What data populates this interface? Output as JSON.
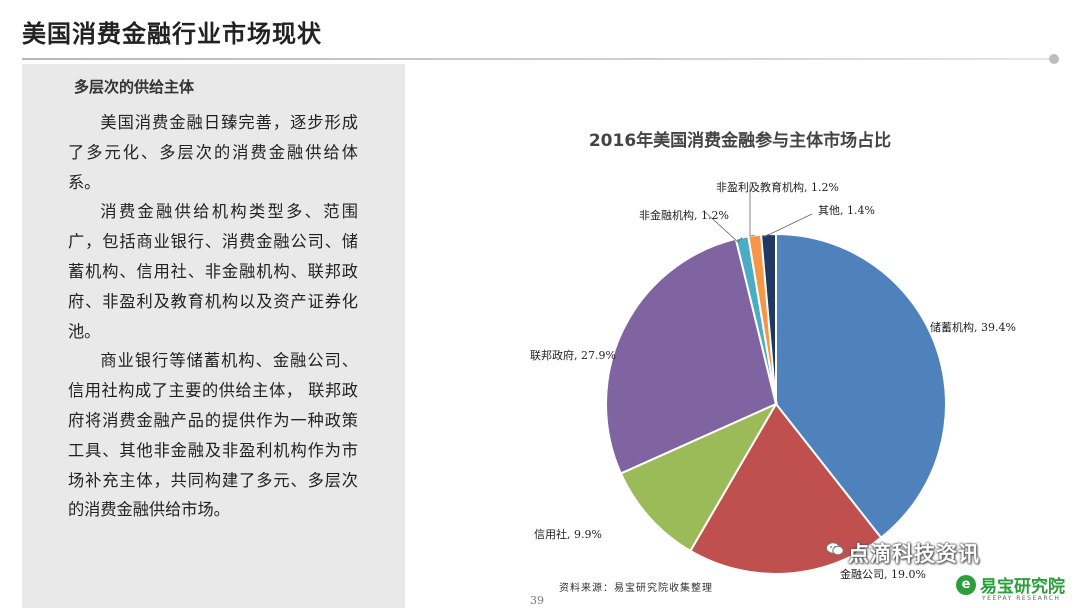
{
  "slide": {
    "title": "美国消费金融行业市场现状",
    "page_number": "39"
  },
  "left_panel": {
    "heading": "多层次的供给主体",
    "paragraphs": [
      "美国消费金融日臻完善，逐步形成了多元化、多层次的消费金融供给体系。",
      "消费金融供给机构类型多、范围广，包括商业银行、消费金融公司、储蓄机构、信用社、非金融机构、联邦政府、非盈利及教育机构以及资产证券化池。",
      "商业银行等储蓄机构、金融公司、信用社构成了主要的供给主体， 联邦政府将消费金融产品的提供作为一种政策工具、其他非金融及非盈利机构作为市场补充主体，共同构建了多元、多层次的消费金融供给市场。"
    ]
  },
  "source_note": "资料来源：易宝研究院收集整理",
  "watermark": {
    "text": "点滴科技资讯",
    "icon": "wechat-icon"
  },
  "logo": {
    "name": "易宝研究院",
    "subtitle": "YEEPAY RESEARCH",
    "mark": "e"
  },
  "chart_data": {
    "type": "pie",
    "title": "2016年美国消费金融参与主体市场占比",
    "slices": [
      {
        "label": "储蓄机构",
        "value": 39.4,
        "display": "储蓄机构, 39.4%",
        "color": "#4f81bd"
      },
      {
        "label": "金融公司",
        "value": 19.0,
        "display": "金融公司, 19.0%",
        "color": "#c0504d"
      },
      {
        "label": "信用社",
        "value": 9.9,
        "display": "信用社, 9.9%",
        "color": "#9bbb59"
      },
      {
        "label": "联邦政府",
        "value": 27.9,
        "display": "联邦政府, 27.9%",
        "color": "#8064a2"
      },
      {
        "label": "非金融机构",
        "value": 1.2,
        "display": "非金融机构, 1.2%",
        "color": "#4bacc6"
      },
      {
        "label": "非盈利及教育机构",
        "value": 1.2,
        "display": "非盈利及教育机构, 1.2%",
        "color": "#f79646"
      },
      {
        "label": "其他",
        "value": 1.4,
        "display": "其他, 1.4%",
        "color": "#1f3864"
      }
    ],
    "start_angle_deg": 0,
    "direction": "clockwise"
  }
}
